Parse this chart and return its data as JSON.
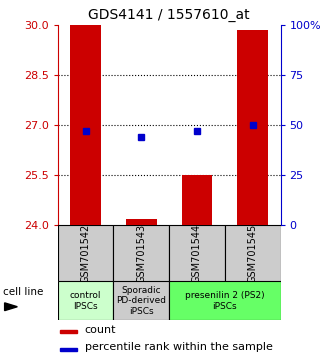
{
  "title": "GDS4141 / 1557610_at",
  "samples": [
    "GSM701542",
    "GSM701543",
    "GSM701544",
    "GSM701545"
  ],
  "ylim": [
    24,
    30
  ],
  "yticks_left": [
    24,
    25.5,
    27,
    28.5,
    30
  ],
  "yticks_right": [
    0,
    25,
    50,
    75,
    100
  ],
  "bar_bottom": 24,
  "bar_values": [
    30.0,
    24.18,
    25.5,
    29.85
  ],
  "blue_values": [
    26.82,
    26.62,
    26.82,
    27.0
  ],
  "hgrid_values": [
    25.5,
    27,
    28.5
  ],
  "groups": [
    {
      "label": "control\nIPSCs",
      "samples": [
        0
      ],
      "color": "#ccffcc"
    },
    {
      "label": "Sporadic\nPD-derived\niPSCs",
      "samples": [
        1
      ],
      "color": "#cccccc"
    },
    {
      "label": "presenilin 2 (PS2)\niPSCs",
      "samples": [
        2,
        3
      ],
      "color": "#66ff66"
    }
  ],
  "bar_color": "#cc0000",
  "blue_color": "#0000cc",
  "bg_color": "#ffffff",
  "sample_box_color": "#cccccc",
  "left_axis_color": "#cc0000",
  "right_axis_color": "#0000cc",
  "legend_red_label": "count",
  "legend_blue_label": "percentile rank within the sample",
  "cell_line_label": "cell line",
  "bar_width": 0.55,
  "figsize": [
    3.3,
    3.54
  ],
  "dpi": 100
}
